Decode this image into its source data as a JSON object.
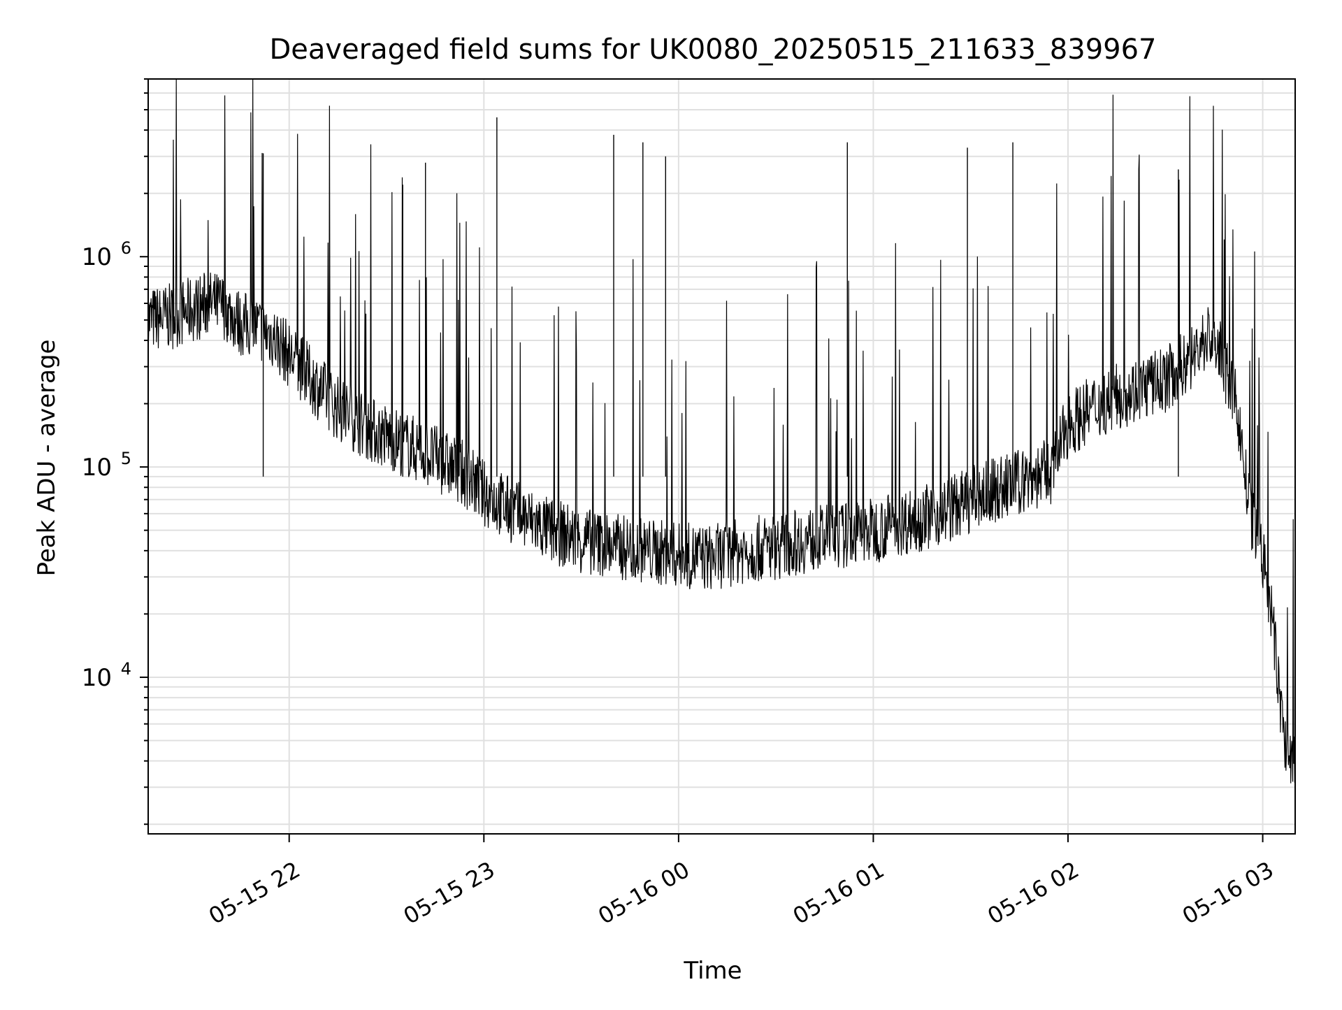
{
  "chart_data": {
    "type": "line",
    "title": "Deaveraged field sums for UK0080_20250515_211633_839967",
    "xlabel": "Time",
    "ylabel": "Peak ADU - average",
    "yscale": "log",
    "ylim": [
      1800,
      7000000
    ],
    "xlim": [
      "2025-05-15 21:16:33",
      "2025-05-16 03:10:00"
    ],
    "xticks": [
      {
        "value": "2025-05-15 22:00",
        "label": "05-15 22"
      },
      {
        "value": "2025-05-15 23:00",
        "label": "05-15 23"
      },
      {
        "value": "2025-05-16 00:00",
        "label": "05-16 00"
      },
      {
        "value": "2025-05-16 01:00",
        "label": "05-16 01"
      },
      {
        "value": "2025-05-16 02:00",
        "label": "05-16 02"
      },
      {
        "value": "2025-05-16 03:00",
        "label": "05-16 03"
      }
    ],
    "yticks": [
      {
        "value": 10000,
        "base": "10",
        "exp": "4"
      },
      {
        "value": 100000,
        "base": "10",
        "exp": "5"
      },
      {
        "value": 1000000,
        "base": "10",
        "exp": "6"
      }
    ],
    "grid": true,
    "legend": "none",
    "line_color": "#000000",
    "grid_color": "#e0e0e0",
    "series": [
      {
        "x": [
          "2025-05-15 21:16:33",
          "2025-05-15 21:24:00",
          "2025-05-15 21:30:00",
          "2025-05-15 21:35:00",
          "2025-05-15 21:40:00",
          "2025-05-15 21:45:00",
          "2025-05-15 21:50:00",
          "2025-05-15 21:55:00",
          "2025-05-15 22:00:00",
          "2025-05-15 22:05:00",
          "2025-05-15 22:10:00",
          "2025-05-15 22:15:00",
          "2025-05-15 22:20:00",
          "2025-05-15 22:25:00",
          "2025-05-15 22:30:00",
          "2025-05-15 22:35:00",
          "2025-05-15 22:40:00",
          "2025-05-15 22:45:00",
          "2025-05-15 22:50:00",
          "2025-05-15 22:55:00",
          "2025-05-15 23:00:00",
          "2025-05-15 23:10:00",
          "2025-05-15 23:20:00",
          "2025-05-15 23:30:00",
          "2025-05-15 23:40:00",
          "2025-05-15 23:50:00",
          "2025-05-16 00:00:00",
          "2025-05-16 00:10:00",
          "2025-05-16 00:20:00",
          "2025-05-16 00:30:00",
          "2025-05-16 00:40:00",
          "2025-05-16 00:50:00",
          "2025-05-16 01:00:00",
          "2025-05-16 01:10:00",
          "2025-05-16 01:20:00",
          "2025-05-16 01:30:00",
          "2025-05-16 01:40:00",
          "2025-05-16 01:50:00",
          "2025-05-16 01:55:00",
          "2025-05-16 02:00:00",
          "2025-05-16 02:10:00",
          "2025-05-16 02:20:00",
          "2025-05-16 02:30:00",
          "2025-05-16 02:38:00",
          "2025-05-16 02:43:00",
          "2025-05-16 02:46:00",
          "2025-05-16 02:48:00",
          "2025-05-16 02:52:00",
          "2025-05-16 02:56:00",
          "2025-05-16 02:59:00",
          "2025-05-16 03:01:00",
          "2025-05-16 03:03:00",
          "2025-05-16 03:05:00",
          "2025-05-16 03:07:00",
          "2025-05-16 03:10:00"
        ],
        "y": [
          500000,
          520000,
          560000,
          600000,
          580000,
          480000,
          460000,
          420000,
          340000,
          280000,
          230000,
          190000,
          170000,
          150000,
          140000,
          130000,
          120000,
          110000,
          100000,
          90000,
          75000,
          60000,
          50000,
          45000,
          42000,
          40000,
          38000,
          37000,
          40000,
          42000,
          45000,
          47000,
          50000,
          55000,
          60000,
          70000,
          80000,
          90000,
          95000,
          160000,
          200000,
          230000,
          260000,
          330000,
          420000,
          380000,
          300000,
          200000,
          60000,
          45000,
          30000,
          18000,
          9000,
          4500,
          4000
        ]
      }
    ],
    "spikes": [
      {
        "x": "2025-05-15 21:52:00",
        "y": 3100000
      },
      {
        "x": "2025-05-15 22:35:00",
        "y": 2200000
      },
      {
        "x": "2025-05-15 22:42:00",
        "y": 2800000
      },
      {
        "x": "2025-05-15 23:04:00",
        "y": 4600000
      },
      {
        "x": "2025-05-15 23:40:00",
        "y": 3800000
      },
      {
        "x": "2025-05-15 23:49:00",
        "y": 3500000
      },
      {
        "x": "2025-05-15 23:56:00",
        "y": 3000000
      },
      {
        "x": "2025-05-16 00:52:00",
        "y": 3500000
      },
      {
        "x": "2025-05-16 01:29:00",
        "y": 3300000
      },
      {
        "x": "2025-05-16 01:43:00",
        "y": 3500000
      },
      {
        "x": "2025-05-16 02:34:00",
        "y": 2600000
      }
    ]
  }
}
